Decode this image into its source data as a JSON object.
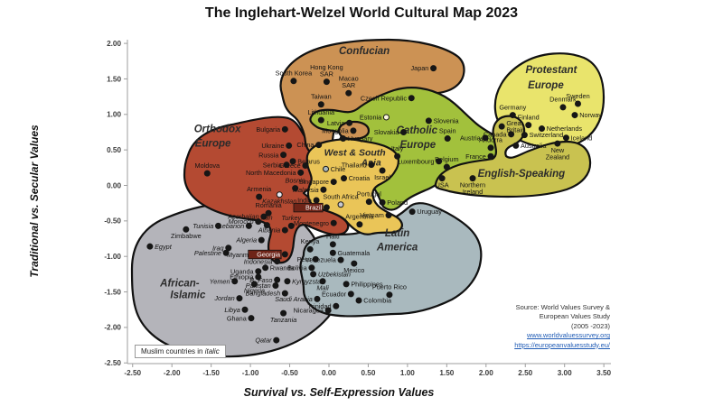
{
  "title": "The Inglehart-Welzel World Cultural Map 2023",
  "axes": {
    "x_label": "Survival vs. Self-Expression Values",
    "y_label": "Traditional vs. Secular Values",
    "x_ticks": [
      "-2.50",
      "-2.00",
      "-1.50",
      "-1.00",
      "-0.50",
      "0.00",
      "0.50",
      "1.00",
      "1.50",
      "2.00",
      "2.50",
      "3.00",
      "3.50"
    ],
    "y_ticks": [
      "2.00",
      "1.50",
      "1.00",
      "0.50",
      "0.00",
      "-0.50",
      "-1.00",
      "-1.50",
      "-2.00",
      "-2.50"
    ],
    "x_range": [
      -2.5,
      3.5
    ],
    "y_range": [
      -2.5,
      2.0
    ]
  },
  "legend_note": {
    "prefix": "Muslim countries in ",
    "italic_word": "italic"
  },
  "source": {
    "lines": [
      "Source: World Values Survey &",
      "European Values Study",
      "(2005 -2023)"
    ],
    "links": [
      "www.worldvaluessurvey.org",
      "https://europeanvaluesstudy.eu/"
    ]
  },
  "chart_data": {
    "type": "scatter",
    "xlim": [
      -2.5,
      3.5
    ],
    "ylim": [
      -2.5,
      2.0
    ],
    "grid": false,
    "regions": [
      {
        "id": "african_islamic",
        "name": "African-Islamic",
        "color": "#b4b4ba",
        "label": {
          "lines": [
            "African-",
            "Islamic"
          ],
          "x": -1.9,
          "y": -1.42,
          "line2_dx": 9,
          "line2_dy": 13
        },
        "countries": [
          {
            "n": "Zimbabwe",
            "x": -1.82,
            "y": -0.62,
            "p": "b"
          },
          {
            "n": "Egypt",
            "x": -2.28,
            "y": -0.86,
            "p": "r",
            "i": true
          },
          {
            "n": "Tunisia",
            "x": -1.41,
            "y": -0.57,
            "p": "l",
            "i": true
          },
          {
            "n": "Morocco",
            "x": -0.9,
            "y": -0.51,
            "p": "l",
            "i": true
          },
          {
            "n": "Azerbaijan",
            "x": -0.83,
            "y": -0.44,
            "p": "l",
            "i": true
          },
          {
            "n": "Lebanon",
            "x": -1.02,
            "y": -0.57,
            "p": "l",
            "i": true
          },
          {
            "n": "Iran",
            "x": -0.79,
            "y": -0.56,
            "p": "t",
            "i": true
          },
          {
            "n": "Turkey",
            "x": -0.48,
            "y": -0.57,
            "p": "t",
            "i": true
          },
          {
            "n": "Albania",
            "x": -0.56,
            "y": -0.63,
            "p": "l",
            "i": true
          },
          {
            "n": "Iraq",
            "x": -1.28,
            "y": -0.88,
            "p": "l",
            "i": true
          },
          {
            "n": "Palestine",
            "x": -1.31,
            "y": -0.95,
            "p": "l",
            "i": true
          },
          {
            "n": "Algeria",
            "x": -0.86,
            "y": -0.77,
            "p": "l",
            "i": true
          },
          {
            "n": "Myanmar",
            "x": -0.89,
            "y": -0.98,
            "p": "l",
            "d": "yellow"
          },
          {
            "n": "Indonesia",
            "x": -0.66,
            "y": -1.07,
            "p": "l",
            "i": true
          },
          {
            "n": "Rwanda",
            "x": -0.81,
            "y": -1.16,
            "p": "r"
          },
          {
            "n": "Uganda",
            "x": -0.9,
            "y": -1.21,
            "p": "l"
          },
          {
            "n": "Ethiopia",
            "x": -0.9,
            "y": -1.29,
            "p": "l"
          },
          {
            "n": "B. Faso",
            "x": -0.66,
            "y": -1.33,
            "p": "l",
            "i": true
          },
          {
            "n": "Pakistan",
            "x": -0.68,
            "y": -1.41,
            "p": "l",
            "i": true
          },
          {
            "n": "Kyrgyzstan",
            "x": -0.53,
            "y": -1.35,
            "p": "r",
            "i": true
          },
          {
            "n": "Uzbekistan",
            "x": -0.2,
            "y": -1.25,
            "p": "r",
            "i": true
          },
          {
            "n": "Mali",
            "x": -0.08,
            "y": -1.35,
            "p": "b",
            "i": true
          },
          {
            "n": "Yemen",
            "x": -1.2,
            "y": -1.35,
            "p": "l",
            "i": true
          },
          {
            "n": "Nigeria",
            "x": -0.95,
            "y": -1.39,
            "p": "b",
            "i": true
          },
          {
            "n": "Bangladesh",
            "x": -0.56,
            "y": -1.52,
            "p": "l",
            "i": true
          },
          {
            "n": "Saudi Arabia",
            "x": -0.15,
            "y": -1.6,
            "p": "l",
            "i": true
          },
          {
            "n": "Jordan",
            "x": -1.14,
            "y": -1.59,
            "p": "l",
            "i": true
          },
          {
            "n": "Libya",
            "x": -1.07,
            "y": -1.75,
            "p": "l",
            "i": true
          },
          {
            "n": "Ghana",
            "x": -0.99,
            "y": -1.87,
            "p": "l"
          },
          {
            "n": "Tanzania",
            "x": -0.58,
            "y": -1.8,
            "p": "b",
            "i": true
          },
          {
            "n": "Qatar",
            "x": -0.67,
            "y": -2.18,
            "p": "l",
            "i": true
          },
          {
            "n": "Kenya",
            "x": -0.24,
            "y": -0.9,
            "p": "t"
          }
        ]
      },
      {
        "id": "latin_america",
        "name": "Latin America",
        "color": "#a9b9be",
        "label": {
          "lines": [
            "Latin",
            "America"
          ],
          "x": 0.87,
          "y": -0.72,
          "line2_dy": 15.5
        },
        "countries": [
          {
            "n": "Uruguay",
            "x": 1.06,
            "y": -0.37,
            "p": "r"
          },
          {
            "n": "Haiti",
            "x": 0.05,
            "y": -0.83,
            "p": "t"
          },
          {
            "n": "Guatemala",
            "x": 0.05,
            "y": -0.95,
            "p": "r"
          },
          {
            "n": "Peru",
            "x": -0.17,
            "y": -1.04,
            "p": "l"
          },
          {
            "n": "Venezuela",
            "x": 0.15,
            "y": -1.05,
            "p": "l"
          },
          {
            "n": "Mexico",
            "x": 0.32,
            "y": -1.1,
            "p": "b"
          },
          {
            "n": "Bolivia",
            "x": -0.22,
            "y": -1.16,
            "p": "l"
          },
          {
            "n": "Philippines",
            "x": 0.22,
            "y": -1.39,
            "p": "r"
          },
          {
            "n": "Puerto Rico",
            "x": 0.77,
            "y": -1.54,
            "p": "t"
          },
          {
            "n": "Ecuador",
            "x": 0.28,
            "y": -1.53,
            "p": "l"
          },
          {
            "n": "Colombia",
            "x": 0.38,
            "y": -1.62,
            "p": "r"
          },
          {
            "n": "Trinidad",
            "x": 0.09,
            "y": -1.7,
            "p": "l"
          },
          {
            "n": "Nicaragua",
            "x": -0.01,
            "y": -1.76,
            "p": "l"
          }
        ]
      },
      {
        "id": "orthodox",
        "name": "Orthodox Europe",
        "color": "#b44a32",
        "label": {
          "lines": [
            "Orthodox",
            "Europe"
          ],
          "x": -1.42,
          "y": 0.75,
          "line2_dx": -5,
          "line2_dy": 16
        },
        "countries": [
          {
            "n": "Bulgaria",
            "x": -0.56,
            "y": 0.79,
            "p": "l"
          },
          {
            "n": "Ukraine",
            "x": -0.51,
            "y": 0.56,
            "p": "l"
          },
          {
            "n": "Russia",
            "x": -0.58,
            "y": 0.43,
            "p": "l"
          },
          {
            "n": "Belarus",
            "x": -0.46,
            "y": 0.34,
            "p": "r"
          },
          {
            "n": "Serbia",
            "x": -0.54,
            "y": 0.29,
            "p": "l"
          },
          {
            "n": "Greece",
            "x": -0.3,
            "y": 0.28,
            "p": "l"
          },
          {
            "n": "North Macedonia",
            "x": -0.36,
            "y": 0.18,
            "p": "l"
          },
          {
            "n": "Moldova",
            "x": -1.55,
            "y": 0.17,
            "p": "t"
          },
          {
            "n": "Bosnia",
            "x": -0.43,
            "y": -0.04,
            "p": "t",
            "i": true
          },
          {
            "n": "Armenia",
            "x": -0.89,
            "y": -0.16,
            "p": "t"
          },
          {
            "n": "Kazakhstan",
            "x": -0.63,
            "y": -0.13,
            "p": "b",
            "i": true,
            "d": "pale"
          },
          {
            "n": "Romania",
            "x": -0.77,
            "y": -0.39,
            "p": "t"
          },
          {
            "n": "Montenegro",
            "x": 0.06,
            "y": -0.53,
            "p": "l"
          },
          {
            "n": "Georgia",
            "x": -0.56,
            "y": -0.97,
            "p": "l",
            "h": true
          }
        ]
      },
      {
        "id": "confucian",
        "name": "Confucian",
        "color": "#cc9254",
        "label": {
          "lines": [
            "Confucian"
          ],
          "x": 0.45,
          "y": 1.85
        },
        "countries": [
          {
            "n": "Japan",
            "x": 1.33,
            "y": 1.65,
            "p": "l"
          },
          {
            "n": "South Korea",
            "x": -0.45,
            "y": 1.47,
            "p": "t"
          },
          {
            "n": "Hong Kong SAR",
            "L": [
              "Hong Kong",
              "SAR"
            ],
            "x": -0.03,
            "y": 1.46,
            "p": "t"
          },
          {
            "n": "Macao SAR",
            "L": [
              "Macao",
              "SAR"
            ],
            "x": 0.25,
            "y": 1.3,
            "p": "t"
          },
          {
            "n": "Taiwan",
            "x": -0.1,
            "y": 1.14,
            "p": "t"
          },
          {
            "n": "China",
            "x": -0.13,
            "y": 0.57,
            "p": "l"
          },
          {
            "n": "Mongolia",
            "x": 0.31,
            "y": 0.77,
            "p": "l"
          }
        ]
      },
      {
        "id": "catholic",
        "name": "Catholic Europe",
        "color": "#a2c13c",
        "label": {
          "lines": [
            "Catholic",
            "Europe"
          ],
          "x": 1.12,
          "y": 0.73,
          "line2_dx": 1,
          "line2_dy": 16
        },
        "countries": [
          {
            "n": "Czech Republic",
            "x": 1.05,
            "y": 1.23,
            "p": "l"
          },
          {
            "n": "Estonia",
            "x": 0.73,
            "y": 0.96,
            "p": "l",
            "d": "open"
          },
          {
            "n": "Lithuania",
            "x": -0.1,
            "y": 0.92,
            "p": "t"
          },
          {
            "n": "Latvia",
            "x": 0.26,
            "y": 0.88,
            "p": "l"
          },
          {
            "n": "Slovenia",
            "x": 1.27,
            "y": 0.91,
            "p": "r"
          },
          {
            "n": "Slovakia",
            "x": 0.95,
            "y": 0.75,
            "p": "l"
          },
          {
            "n": "Hungary",
            "x": 0.18,
            "y": 0.66,
            "p": "r"
          },
          {
            "n": "Spain",
            "x": 1.51,
            "y": 0.66,
            "p": "t"
          },
          {
            "n": "Austria",
            "x": 1.99,
            "y": 0.67,
            "p": "l"
          },
          {
            "n": "Andorra",
            "x": 2.06,
            "y": 0.53,
            "p": "t"
          },
          {
            "n": "France",
            "x": 2.06,
            "y": 0.41,
            "p": "l"
          },
          {
            "n": "Italy",
            "x": 0.87,
            "y": 0.41,
            "p": "t"
          },
          {
            "n": "Luxembourg",
            "x": 1.4,
            "y": 0.34,
            "p": "l"
          },
          {
            "n": "Belgium",
            "x": 1.5,
            "y": 0.26,
            "p": "t"
          },
          {
            "n": "Poland",
            "x": 0.68,
            "y": -0.24,
            "p": "r"
          }
        ]
      },
      {
        "id": "west_south_asia",
        "name": "West & South Asia",
        "color": "#eac558",
        "label": {
          "lines": [
            "West & South",
            "Asia"
          ],
          "x": 0.33,
          "y": 0.42,
          "line2_dx": 18,
          "line2_dy": 11,
          "size": 10.5
        },
        "countries": [
          {
            "n": "Thailand",
            "x": 0.54,
            "y": 0.29,
            "p": "l"
          },
          {
            "n": "Israel",
            "x": 0.68,
            "y": 0.21,
            "p": "b"
          },
          {
            "n": "Chile",
            "x": -0.04,
            "y": 0.23,
            "p": "r",
            "d": "latin"
          },
          {
            "n": "Croatia",
            "x": 0.19,
            "y": 0.1,
            "p": "r"
          },
          {
            "n": "Singapore",
            "x": 0.06,
            "y": 0.05,
            "p": "l"
          },
          {
            "n": "Malaysia",
            "x": -0.07,
            "y": -0.06,
            "p": "l",
            "i": true
          },
          {
            "n": "India",
            "x": -0.16,
            "y": -0.21,
            "p": "l"
          },
          {
            "n": "South Africa",
            "x": 0.15,
            "y": -0.27,
            "p": "t",
            "d": "gray"
          },
          {
            "n": "Brazil",
            "x": -0.03,
            "y": -0.31,
            "p": "l",
            "h": true
          },
          {
            "n": "Portugal",
            "x": 0.51,
            "y": -0.23,
            "p": "t"
          },
          {
            "n": "Vietnam",
            "x": 0.76,
            "y": -0.42,
            "p": "l"
          },
          {
            "n": "Argentina",
            "x": 0.39,
            "y": -0.55,
            "p": "t"
          }
        ]
      },
      {
        "id": "protestant",
        "name": "Protestant Europe",
        "color": "#e9e46c",
        "label": {
          "lines": [
            "Protestant",
            "Europe"
          ],
          "x": 2.83,
          "y": 1.58,
          "line2_dx": -6,
          "line2_dy": 17
        },
        "countries": [
          {
            "n": "Sweden",
            "x": 3.17,
            "y": 1.15,
            "p": "t"
          },
          {
            "n": "Denmark",
            "x": 2.98,
            "y": 1.1,
            "p": "t"
          },
          {
            "n": "Norway",
            "x": 3.13,
            "y": 0.99,
            "p": "r"
          },
          {
            "n": "Germany",
            "x": 2.34,
            "y": 0.99,
            "p": "t"
          },
          {
            "n": "Finland",
            "x": 2.54,
            "y": 0.85,
            "p": "t"
          },
          {
            "n": "Netherlands",
            "x": 2.71,
            "y": 0.8,
            "p": "r"
          },
          {
            "n": "Switzerland",
            "x": 2.49,
            "y": 0.71,
            "p": "r"
          },
          {
            "n": "Iceland",
            "x": 3.02,
            "y": 0.67,
            "p": "r"
          }
        ]
      },
      {
        "id": "english",
        "name": "English-Speaking",
        "color": "#c9c250",
        "label": {
          "lines": [
            "English-Speaking"
          ],
          "x": 2.45,
          "y": 0.12
        },
        "countries": [
          {
            "n": "Great Britain",
            "L": [
              "Great",
              "Britain"
            ],
            "x": 2.2,
            "y": 0.83,
            "p": "r"
          },
          {
            "n": "Canada",
            "x": 2.32,
            "y": 0.72,
            "p": "l"
          },
          {
            "n": "Australia",
            "x": 2.38,
            "y": 0.56,
            "p": "r"
          },
          {
            "n": "New Zealand",
            "L": [
              "New",
              "Zealand"
            ],
            "x": 2.91,
            "y": 0.59,
            "p": "b"
          },
          {
            "n": "USA",
            "x": 1.44,
            "y": 0.1,
            "p": "b"
          },
          {
            "n": "Northern Ireland",
            "L": [
              "Northern",
              "Ireland"
            ],
            "x": 1.83,
            "y": 0.1,
            "p": "b"
          }
        ]
      }
    ]
  }
}
